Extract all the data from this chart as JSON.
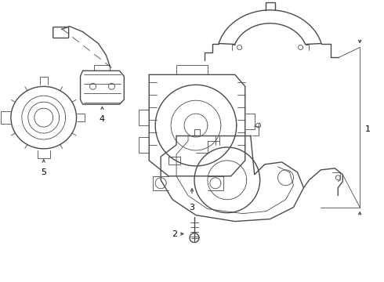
{
  "background_color": "#ffffff",
  "line_color": "#4a4a4a",
  "lw": 1.0,
  "tlw": 0.6,
  "fig_width": 4.9,
  "fig_height": 3.6,
  "dpi": 100
}
